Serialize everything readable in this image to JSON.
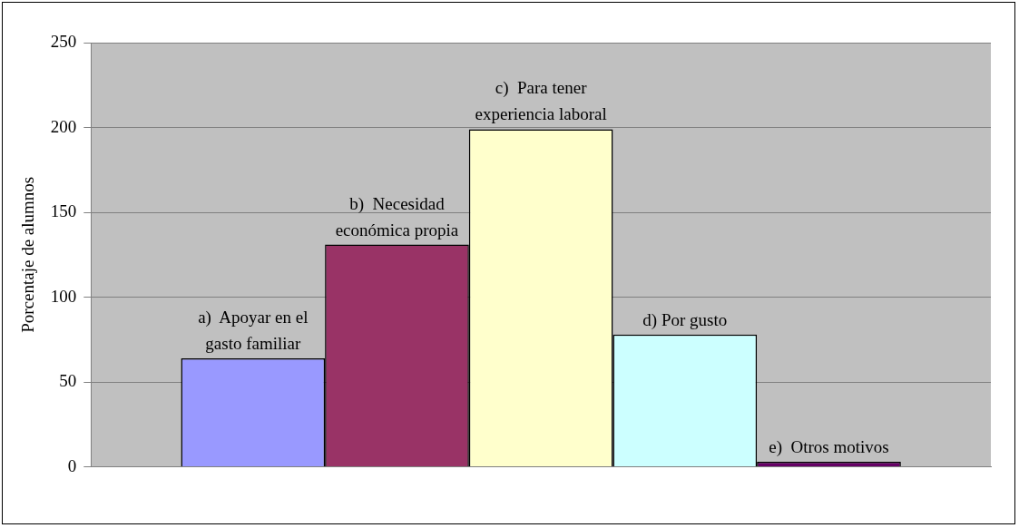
{
  "chart_data": {
    "type": "bar",
    "ylabel": "Porcentaje de alumnos",
    "categories": [
      null
    ],
    "series": [
      {
        "name": "a)  Apoyar en el gasto familiar",
        "color": "#9999ff",
        "values": [
          64
        ]
      },
      {
        "name": "b)  Necesidad económica propia",
        "color": "#993366",
        "values": [
          131
        ]
      },
      {
        "name": "c)  Para tener experiencia laboral",
        "color": "#ffffcc",
        "values": [
          199
        ]
      },
      {
        "name": "d) Por gusto",
        "color": "#ccffff",
        "values": [
          78
        ]
      },
      {
        "name": "e)  Otros motivos",
        "color": "#660066",
        "values": [
          3
        ]
      }
    ],
    "ylim": [
      0,
      250
    ],
    "yticks": [
      0,
      50,
      100,
      150,
      200,
      250
    ],
    "grid": "y",
    "legend": false
  }
}
